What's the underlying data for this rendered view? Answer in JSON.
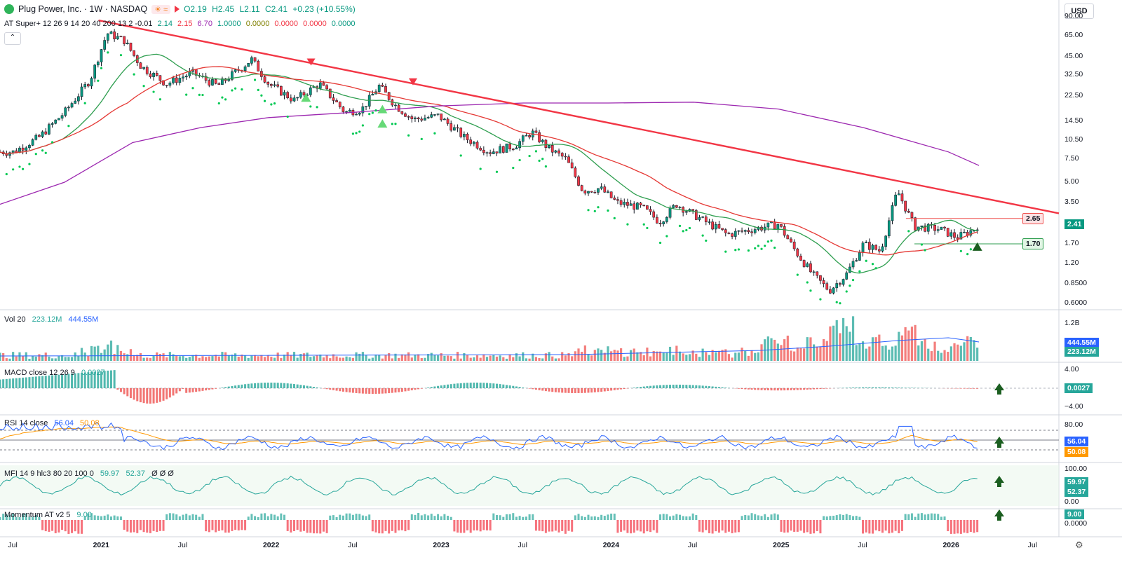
{
  "header": {
    "title": "Plug Power, Inc. · 1W · NASDAQ",
    "ohlc": {
      "open": "O2.19",
      "high": "H2.45",
      "low": "L2.11",
      "close": "C2.41",
      "change": "+0.23 (+10.55%)"
    },
    "icon_badge": "☀ ≈"
  },
  "indicators": {
    "super": {
      "label": "AT Super+ 12 26 9 14 20 40 200 13 2 -0.01",
      "values": [
        "2.14",
        "2.15",
        "6.70",
        "1.0000",
        "0.0000",
        "0.0000",
        "0.0000",
        "0.0000"
      ],
      "colors": [
        "#089981",
        "#f23645",
        "#9c27b0",
        "#089981",
        "#808000",
        "#f23645",
        "#f23645",
        "#089981"
      ]
    },
    "vol": {
      "label": "Vol 20",
      "v1": "223.12M",
      "v2": "444.55M"
    },
    "macd": {
      "label": "MACD close 12 26 9",
      "v1": "0.0027"
    },
    "rsi": {
      "label": "RSI 14 close",
      "v1": "56.04",
      "v2": "50.08"
    },
    "mfi": {
      "label": "MFI 14 9 hlc3 80 20 100 0",
      "v1": "59.97",
      "v2": "52.37",
      "extra": "Ø Ø Ø"
    },
    "momentum": {
      "label": "Momentum AT v2 5",
      "v1": "9.00"
    }
  },
  "currency": "USD",
  "price_axis": [
    "90.00",
    "65.00",
    "45.00",
    "32.50",
    "22.50",
    "14.50",
    "10.50",
    "7.50",
    "5.00",
    "3.50",
    "2.41",
    "1.70",
    "1.20",
    "0.8500",
    "0.6000",
    "1.2B"
  ],
  "price_tags": {
    "last": "2.41",
    "resistance": "2.65",
    "support": "1.70"
  },
  "vol_axis": {
    "v2": "444.55M",
    "v1": "223.12M"
  },
  "macd_axis": [
    "4.00",
    "0.0027",
    "−4.00"
  ],
  "rsi_axis": [
    "80.00",
    "56.04",
    "50.08",
    "20.00"
  ],
  "mfi_axis": [
    "100.00",
    "59.97",
    "52.37",
    "0.00"
  ],
  "mom_axis": [
    "9.00",
    "0.0000"
  ],
  "time_axis": [
    "Jul",
    "2021",
    "Jul",
    "2022",
    "Jul",
    "2023",
    "Jul",
    "2024",
    "Jul",
    "2025",
    "Jul",
    "2026",
    "Jul"
  ],
  "colors": {
    "up": "#26a69a",
    "down": "#ef5350",
    "candle_up": "#089981",
    "candle_down": "#f23645",
    "sma_green": "#2e9e4f",
    "sma_red": "#e53935",
    "sma_purple": "#9c27b0",
    "trendline": "#f23645",
    "rsi": "#2962ff",
    "rsi_ma": "#ff9800"
  },
  "chart_data": {
    "type": "candlestick",
    "interval": "1W",
    "scale": "log",
    "ylim": [
      0.55,
      95
    ],
    "x_range": [
      "2020-07",
      "2026-07"
    ],
    "series": [
      {
        "name": "Plug Power, Inc.",
        "values": [
          [
            2020.5,
            8.5
          ],
          [
            2020.65,
            11
          ],
          [
            2020.8,
            17
          ],
          [
            2020.95,
            30
          ],
          [
            2021.05,
            68
          ],
          [
            2021.15,
            60
          ],
          [
            2021.25,
            38
          ],
          [
            2021.4,
            28
          ],
          [
            2021.55,
            34
          ],
          [
            2021.7,
            27
          ],
          [
            2021.85,
            38
          ],
          [
            2021.9,
            43
          ],
          [
            2022.0,
            28
          ],
          [
            2022.15,
            21
          ],
          [
            2022.3,
            28
          ],
          [
            2022.45,
            17
          ],
          [
            2022.55,
            18
          ],
          [
            2022.65,
            27
          ],
          [
            2022.75,
            19
          ],
          [
            2022.85,
            15
          ],
          [
            2023.0,
            16
          ],
          [
            2023.15,
            11
          ],
          [
            2023.3,
            8.5
          ],
          [
            2023.45,
            9.5
          ],
          [
            2023.55,
            12
          ],
          [
            2023.65,
            9
          ],
          [
            2023.75,
            7.5
          ],
          [
            2023.85,
            4.3
          ],
          [
            2023.95,
            4.5
          ],
          [
            2024.05,
            3.5
          ],
          [
            2024.2,
            3.2
          ],
          [
            2024.3,
            2.5
          ],
          [
            2024.4,
            3.4
          ],
          [
            2024.55,
            2.6
          ],
          [
            2024.7,
            2.0
          ],
          [
            2024.85,
            2.2
          ],
          [
            2025.0,
            2.4
          ],
          [
            2025.1,
            1.5
          ],
          [
            2025.2,
            1.0
          ],
          [
            2025.3,
            0.75
          ],
          [
            2025.4,
            1.0
          ],
          [
            2025.5,
            1.7
          ],
          [
            2025.6,
            1.5
          ],
          [
            2025.7,
            4.3
          ],
          [
            2025.8,
            2.3
          ],
          [
            2025.95,
            2.2
          ],
          [
            2026.05,
            1.9
          ],
          [
            2026.15,
            2.19
          ],
          [
            2026.18,
            2.41
          ]
        ]
      }
    ],
    "ma_periods": [
      20,
      40,
      200
    ],
    "last": {
      "open": 2.19,
      "high": 2.45,
      "low": 2.11,
      "close": 2.41
    },
    "levels": {
      "resistance": 2.65,
      "support": 1.7
    },
    "volume_ma": [
      223.12,
      444.55
    ],
    "macd_last": 0.0027,
    "rsi_last": [
      56.04,
      50.08
    ],
    "mfi_last": [
      59.97,
      52.37
    ],
    "momentum_last": 9.0
  }
}
